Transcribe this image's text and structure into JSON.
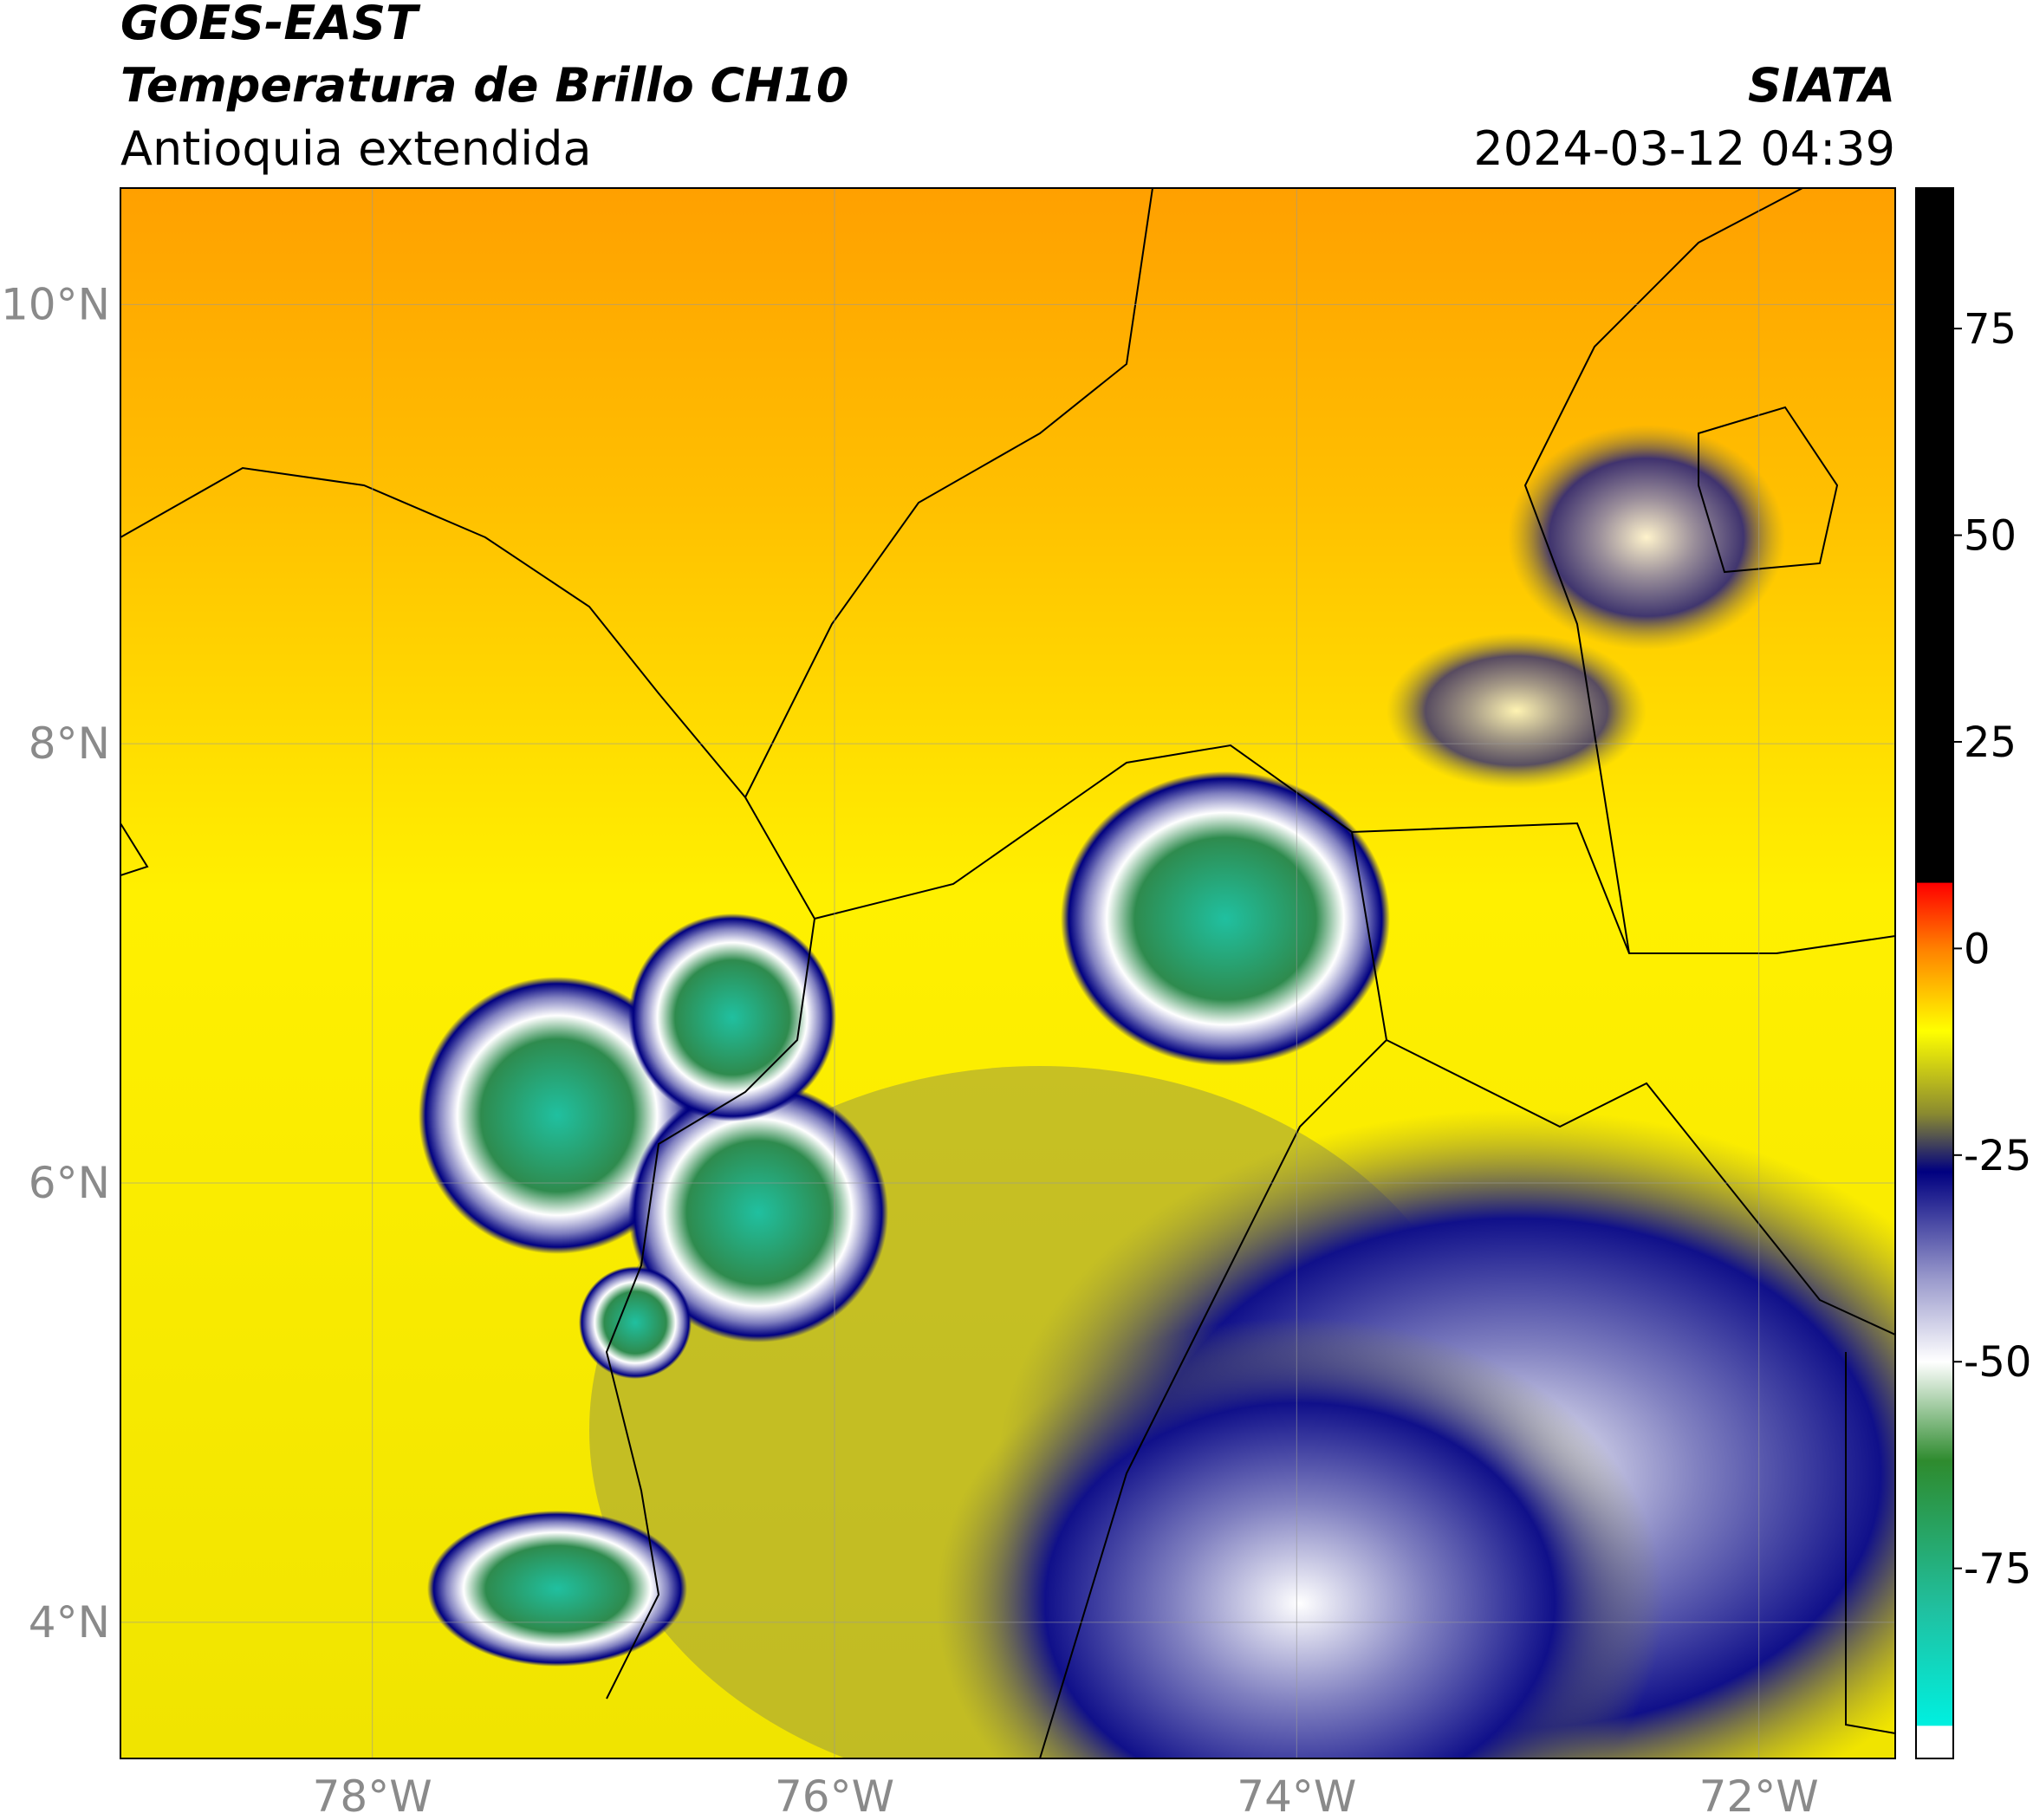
{
  "header": {
    "title": "GOES-EAST",
    "product": "Temperatura de Brillo CH10",
    "region": "Antioquia extendida",
    "source": "SIATA",
    "datetime": "2024-03-12 04:39"
  },
  "map": {
    "lonlim": [
      -79.09,
      -71.41
    ],
    "latlim": [
      3.38,
      10.53
    ],
    "lonticks": [
      {
        "value": -78,
        "label": "78°W"
      },
      {
        "value": -76,
        "label": "76°W"
      },
      {
        "value": -74,
        "label": "74°W"
      },
      {
        "value": -72,
        "label": "72°W"
      }
    ],
    "latticks": [
      {
        "value": 10,
        "label": "10°N"
      },
      {
        "value": 8,
        "label": "8°N"
      },
      {
        "value": 6,
        "label": "6°N"
      },
      {
        "value": 4,
        "label": "4°N"
      }
    ],
    "grid": true
  },
  "colorbar": {
    "lim": [
      -98,
      92
    ],
    "ticks": [
      75,
      50,
      25,
      0,
      -25,
      -50,
      -75
    ],
    "stops": [
      {
        "value": 92,
        "color": "#000000"
      },
      {
        "value": 8,
        "color": "#000000"
      },
      {
        "value": 7.9,
        "color": "#ff0000"
      },
      {
        "value": 0,
        "color": "#ff8000"
      },
      {
        "value": -10,
        "color": "#ffff00"
      },
      {
        "value": -20,
        "color": "#8a8a30"
      },
      {
        "value": -27,
        "color": "#000080"
      },
      {
        "value": -40,
        "color": "#9a9acc"
      },
      {
        "value": -50,
        "color": "#ffffff"
      },
      {
        "value": -62,
        "color": "#2e8b2e"
      },
      {
        "value": -80,
        "color": "#20c0a0"
      },
      {
        "value": -94,
        "color": "#00f0e0"
      },
      {
        "value": -94.1,
        "color": "#ffffff"
      },
      {
        "value": -98,
        "color": "#ffffff"
      }
    ]
  }
}
